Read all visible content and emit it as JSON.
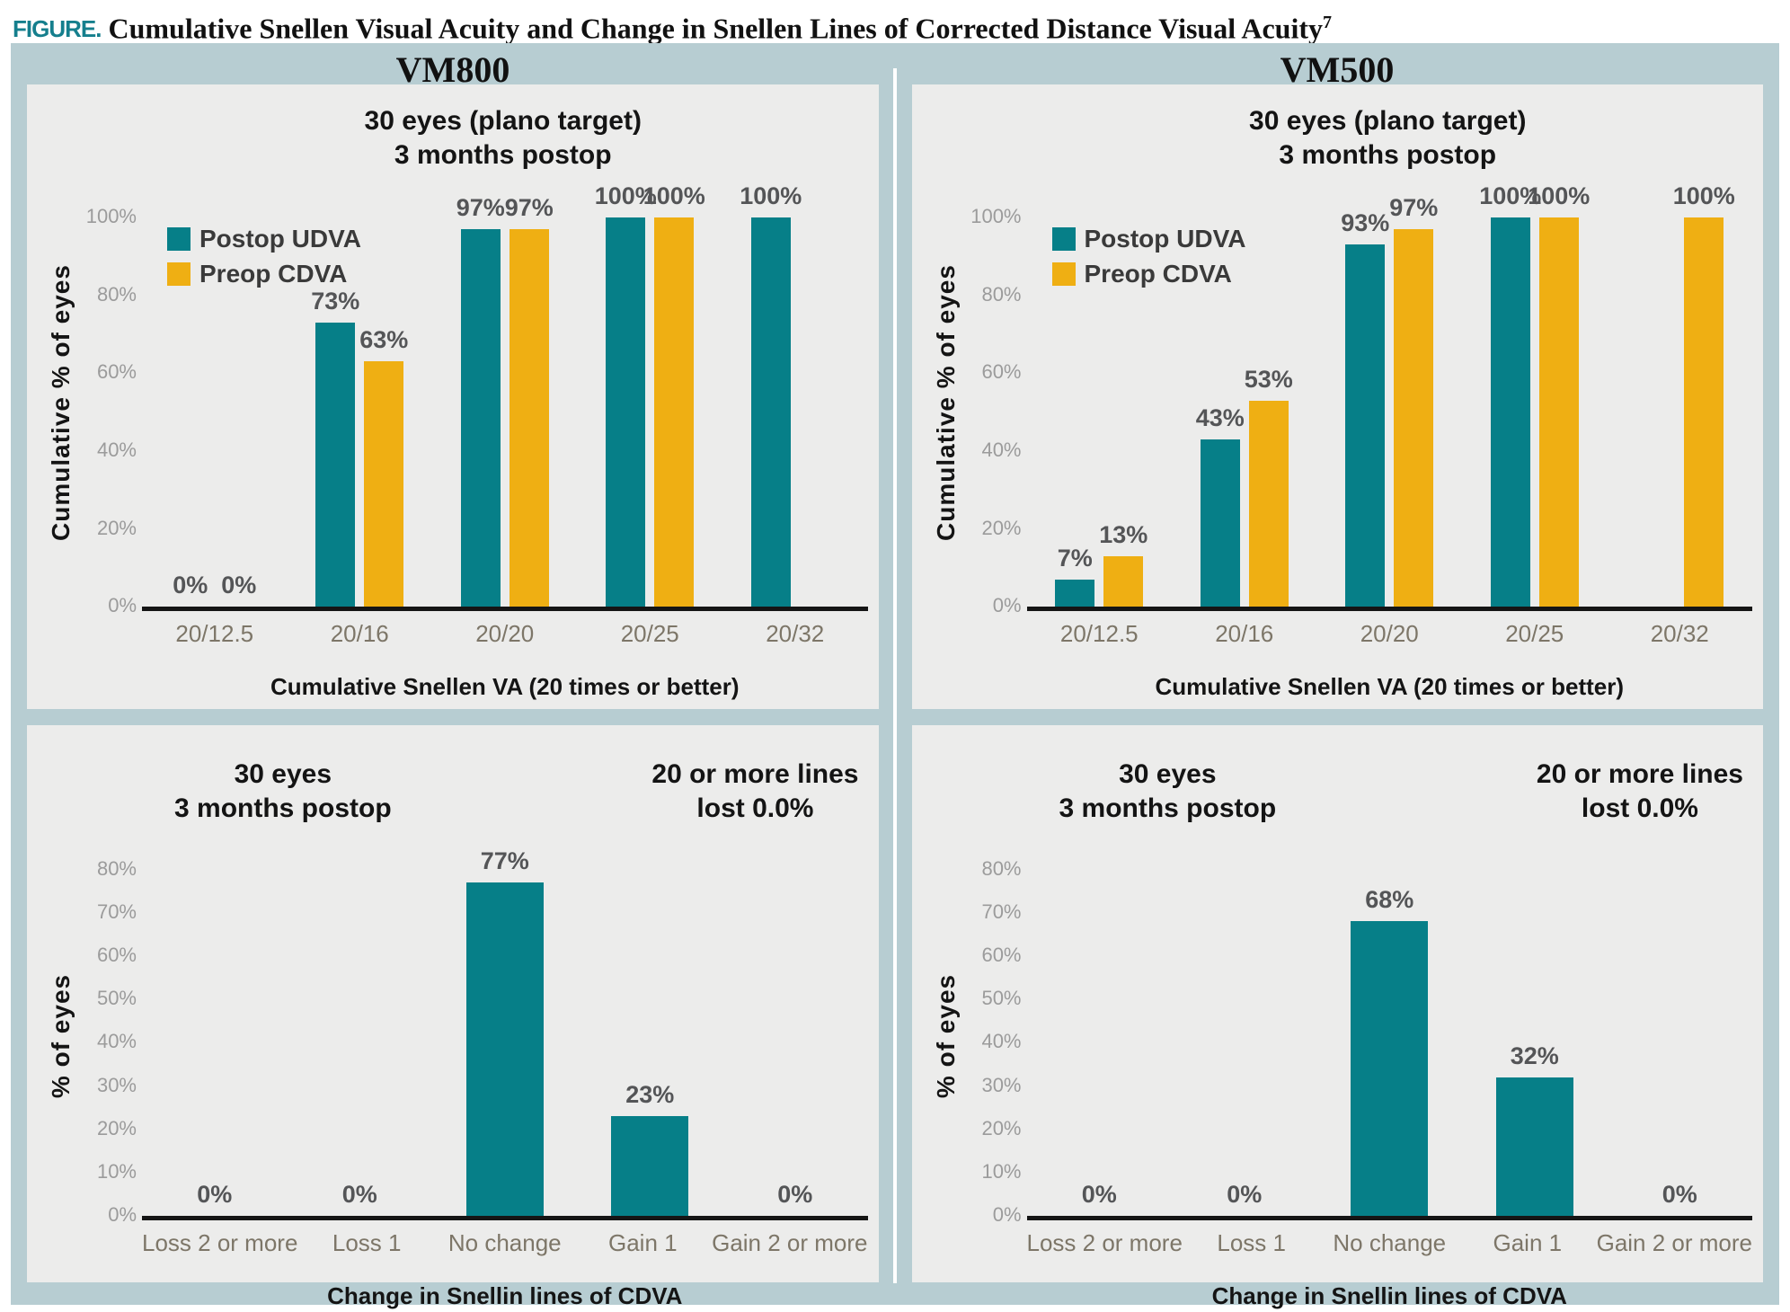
{
  "figure": {
    "label": "FIGURE.",
    "title": "Cumulative Snellen Visual Acuity and Change in Snellen Lines of Corrected Distance Visual Acuity",
    "title_superscript": "7",
    "columns": [
      "VM800",
      "VM500"
    ]
  },
  "colors": {
    "teal": "#067f88",
    "gold": "#efaf13",
    "figure_label_teal": "#157f8d",
    "container_bg": "#b7cdd2",
    "panel_bg": "#ececeb",
    "tick_gray": "#9b9b9b",
    "value_label_gray": "#545557",
    "category_label_brown": "#7d7668"
  },
  "chart_data": [
    {
      "id": "vm800-cumulative-va",
      "type": "bar",
      "column": "VM800",
      "subtitle": [
        "30 eyes (plano target)",
        "3 months postop"
      ],
      "legend_position": "top-left",
      "categories": [
        "20/12.5",
        "20/16",
        "20/20",
        "20/25",
        "20/32"
      ],
      "series": [
        {
          "name": "Postop UDVA",
          "color": "teal",
          "values": [
            0,
            73,
            97,
            100,
            100
          ]
        },
        {
          "name": "Preop CDVA",
          "color": "gold",
          "values": [
            0,
            63,
            97,
            100,
            null
          ]
        }
      ],
      "ylabel": "Cumulative % of eyes",
      "xlabel": "Cumulative Snellen VA (20 times or better)",
      "yticks": [
        0,
        20,
        40,
        60,
        80,
        100
      ],
      "ylim": [
        0,
        105
      ],
      "grid": false
    },
    {
      "id": "vm500-cumulative-va",
      "type": "bar",
      "column": "VM500",
      "subtitle": [
        "30 eyes (plano target)",
        "3 months postop"
      ],
      "legend_position": "top-left",
      "categories": [
        "20/12.5",
        "20/16",
        "20/20",
        "20/25",
        "20/32"
      ],
      "series": [
        {
          "name": "Postop UDVA",
          "color": "teal",
          "values": [
            7,
            43,
            93,
            100,
            null
          ]
        },
        {
          "name": "Preop CDVA",
          "color": "gold",
          "values": [
            13,
            53,
            97,
            100,
            100
          ]
        }
      ],
      "ylabel": "Cumulative % of eyes",
      "xlabel": "Cumulative Snellen VA (20 times or better)",
      "yticks": [
        0,
        20,
        40,
        60,
        80,
        100
      ],
      "ylim": [
        0,
        105
      ],
      "grid": false
    },
    {
      "id": "vm800-change-lines",
      "type": "bar",
      "column": "VM800",
      "subtitle_left": [
        "30 eyes",
        "3 months postop"
      ],
      "subtitle_right": [
        "20 or more lines",
        "lost 0.0%"
      ],
      "categories": [
        "Loss 2 or more",
        "Loss 1",
        "No change",
        "Gain 1",
        "Gain 2 or more"
      ],
      "series": [
        {
          "name": "Change in CDVA",
          "color": "teal",
          "values": [
            0,
            0,
            77,
            23,
            0
          ]
        }
      ],
      "ylabel": "% of eyes",
      "xlabel": "Change in Snellin lines of CDVA",
      "yticks": [
        0,
        10,
        20,
        30,
        40,
        50,
        60,
        70,
        80
      ],
      "ylim": [
        0,
        83
      ],
      "grid": false
    },
    {
      "id": "vm500-change-lines",
      "type": "bar",
      "column": "VM500",
      "subtitle_left": [
        "30 eyes",
        "3 months postop"
      ],
      "subtitle_right": [
        "20 or more lines",
        "lost 0.0%"
      ],
      "categories": [
        "Loss 2 or more",
        "Loss 1",
        "No change",
        "Gain 1",
        "Gain 2 or more"
      ],
      "series": [
        {
          "name": "Change in CDVA",
          "color": "teal",
          "values": [
            0,
            0,
            68,
            32,
            0
          ]
        }
      ],
      "ylabel": "% of eyes",
      "xlabel": "Change in Snellin lines of CDVA",
      "yticks": [
        0,
        10,
        20,
        30,
        40,
        50,
        60,
        70,
        80
      ],
      "ylim": [
        0,
        83
      ],
      "grid": false
    }
  ]
}
